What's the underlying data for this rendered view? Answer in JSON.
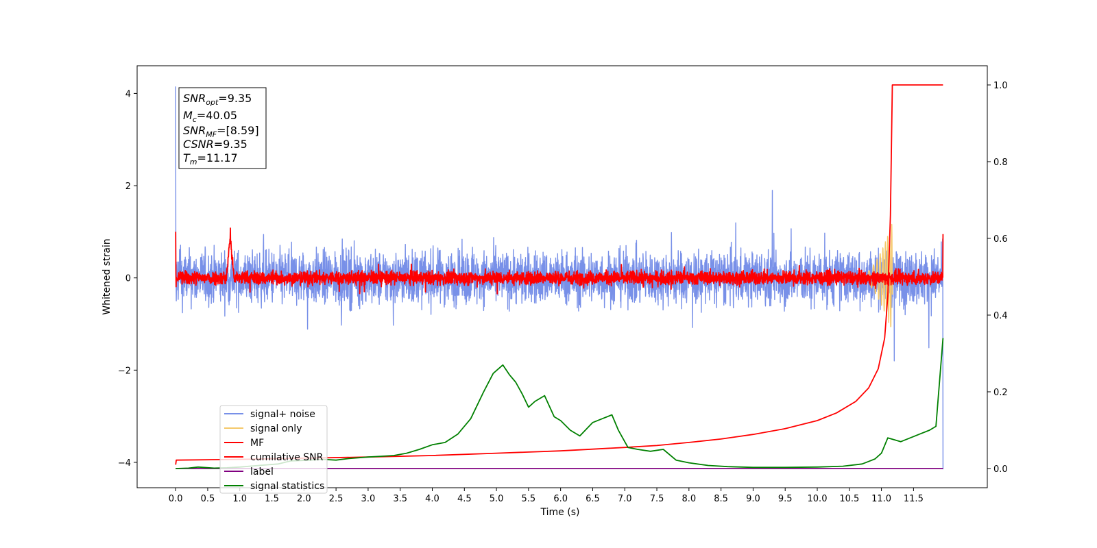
{
  "chart_data": {
    "type": "line",
    "xlabel": "Time (s)",
    "ylabel": "Whitened strain",
    "xlim": [
      -0.6,
      12.65
    ],
    "ylim": [
      -4.55,
      4.6
    ],
    "ylim_right": [
      -0.05,
      1.05
    ],
    "x_ticks": [
      "0.0",
      "0.5",
      "1.0",
      "1.5",
      "2.0",
      "2.5",
      "3.0",
      "3.5",
      "4.0",
      "4.5",
      "5.0",
      "5.5",
      "6.0",
      "6.5",
      "7.0",
      "7.5",
      "8.0",
      "8.5",
      "9.0",
      "9.5",
      "10.0",
      "10.5",
      "11.0",
      "11.5"
    ],
    "y_ticks_left": [
      "4",
      "2",
      "0",
      "−2",
      "−4"
    ],
    "y_ticks_right": [
      "1.0",
      "0.8",
      "0.6",
      "0.4",
      "0.2",
      "0.0"
    ],
    "annotation": {
      "snr_opt": "=9.35",
      "mc": "=40.05",
      "snr_mf": "=[8.59]",
      "csnr": "=9.35",
      "tm": "=11.17"
    },
    "legend": {
      "position": "lower-left",
      "entries": [
        {
          "label": "signal+ noise",
          "color": "#7890e8"
        },
        {
          "label": "signal only",
          "color": "#f5c86a"
        },
        {
          "label": "MF",
          "color": "#ff0000"
        },
        {
          "label": "cumilative SNR",
          "color": "#ff0000"
        },
        {
          "label": "label",
          "color": "#800080"
        },
        {
          "label": "signal statistics",
          "color": "#008000"
        }
      ]
    },
    "series": [
      {
        "name": "signal+ noise",
        "axis": "left",
        "color": "#7890e8",
        "style": "noise",
        "x_range": [
          0,
          11.96
        ],
        "amplitude": 0.55,
        "spikes": [
          [
            0.0,
            4.15
          ],
          [
            0.01,
            -0.5
          ],
          [
            11.96,
            -4.15
          ],
          [
            11.2,
            -1.8
          ],
          [
            9.3,
            1.9
          ]
        ]
      },
      {
        "name": "signal only",
        "axis": "left",
        "color": "#f5c86a",
        "style": "chirp",
        "x_range": [
          10.6,
          11.17
        ],
        "amplitude": 1.2
      },
      {
        "name": "MF",
        "axis": "left",
        "color": "#ff0000",
        "style": "noise",
        "x_range": [
          0,
          11.96
        ],
        "amplitude": 0.14,
        "bumps": [
          [
            0.85,
            0.9,
            0.06
          ]
        ],
        "spikes": [
          [
            0.0,
            1.0
          ],
          [
            11.96,
            0.95
          ]
        ]
      },
      {
        "name": "cumilative SNR",
        "axis": "right",
        "x": [
          0.0,
          0.01,
          1.0,
          2.0,
          3.0,
          4.0,
          5.0,
          6.0,
          7.0,
          7.5,
          8.0,
          8.5,
          9.0,
          9.5,
          10.0,
          10.3,
          10.6,
          10.8,
          10.95,
          11.05,
          11.1,
          11.14,
          11.17,
          11.2,
          11.96
        ],
        "values": [
          0.01,
          0.022,
          0.024,
          0.027,
          0.03,
          0.034,
          0.04,
          0.046,
          0.055,
          0.06,
          0.068,
          0.077,
          0.089,
          0.104,
          0.125,
          0.145,
          0.175,
          0.21,
          0.26,
          0.34,
          0.45,
          0.66,
          1.0,
          1.0,
          1.0
        ],
        "color": "#ff0000"
      },
      {
        "name": "label",
        "axis": "right",
        "x": [
          0.0,
          11.96
        ],
        "values": [
          0.0,
          0.0
        ],
        "color": "#800080"
      },
      {
        "name": "signal statistics",
        "axis": "right",
        "x": [
          0.0,
          0.2,
          0.35,
          0.6,
          0.8,
          1.0,
          1.3,
          1.6,
          1.8,
          2.1,
          2.3,
          2.5,
          2.7,
          3.0,
          3.2,
          3.4,
          3.6,
          3.8,
          4.0,
          4.2,
          4.4,
          4.6,
          4.8,
          4.95,
          5.1,
          5.2,
          5.3,
          5.4,
          5.5,
          5.6,
          5.75,
          5.9,
          6.0,
          6.15,
          6.3,
          6.5,
          6.65,
          6.8,
          6.9,
          7.05,
          7.2,
          7.4,
          7.6,
          7.8,
          8.0,
          8.3,
          8.6,
          9.0,
          9.5,
          10.0,
          10.4,
          10.7,
          10.9,
          11.0,
          11.1,
          11.2,
          11.3,
          11.45,
          11.6,
          11.75,
          11.85,
          11.96
        ],
        "values": [
          0.0,
          0.001,
          0.004,
          0.001,
          0.002,
          0.004,
          0.008,
          0.012,
          0.02,
          0.022,
          0.024,
          0.022,
          0.026,
          0.03,
          0.032,
          0.034,
          0.04,
          0.05,
          0.062,
          0.068,
          0.09,
          0.13,
          0.2,
          0.248,
          0.27,
          0.245,
          0.225,
          0.195,
          0.16,
          0.175,
          0.19,
          0.135,
          0.125,
          0.1,
          0.085,
          0.12,
          0.13,
          0.14,
          0.1,
          0.055,
          0.05,
          0.045,
          0.05,
          0.022,
          0.015,
          0.008,
          0.005,
          0.003,
          0.003,
          0.004,
          0.006,
          0.012,
          0.025,
          0.04,
          0.08,
          0.075,
          0.07,
          0.08,
          0.09,
          0.1,
          0.11,
          0.34
        ],
        "color": "#008000"
      }
    ]
  }
}
